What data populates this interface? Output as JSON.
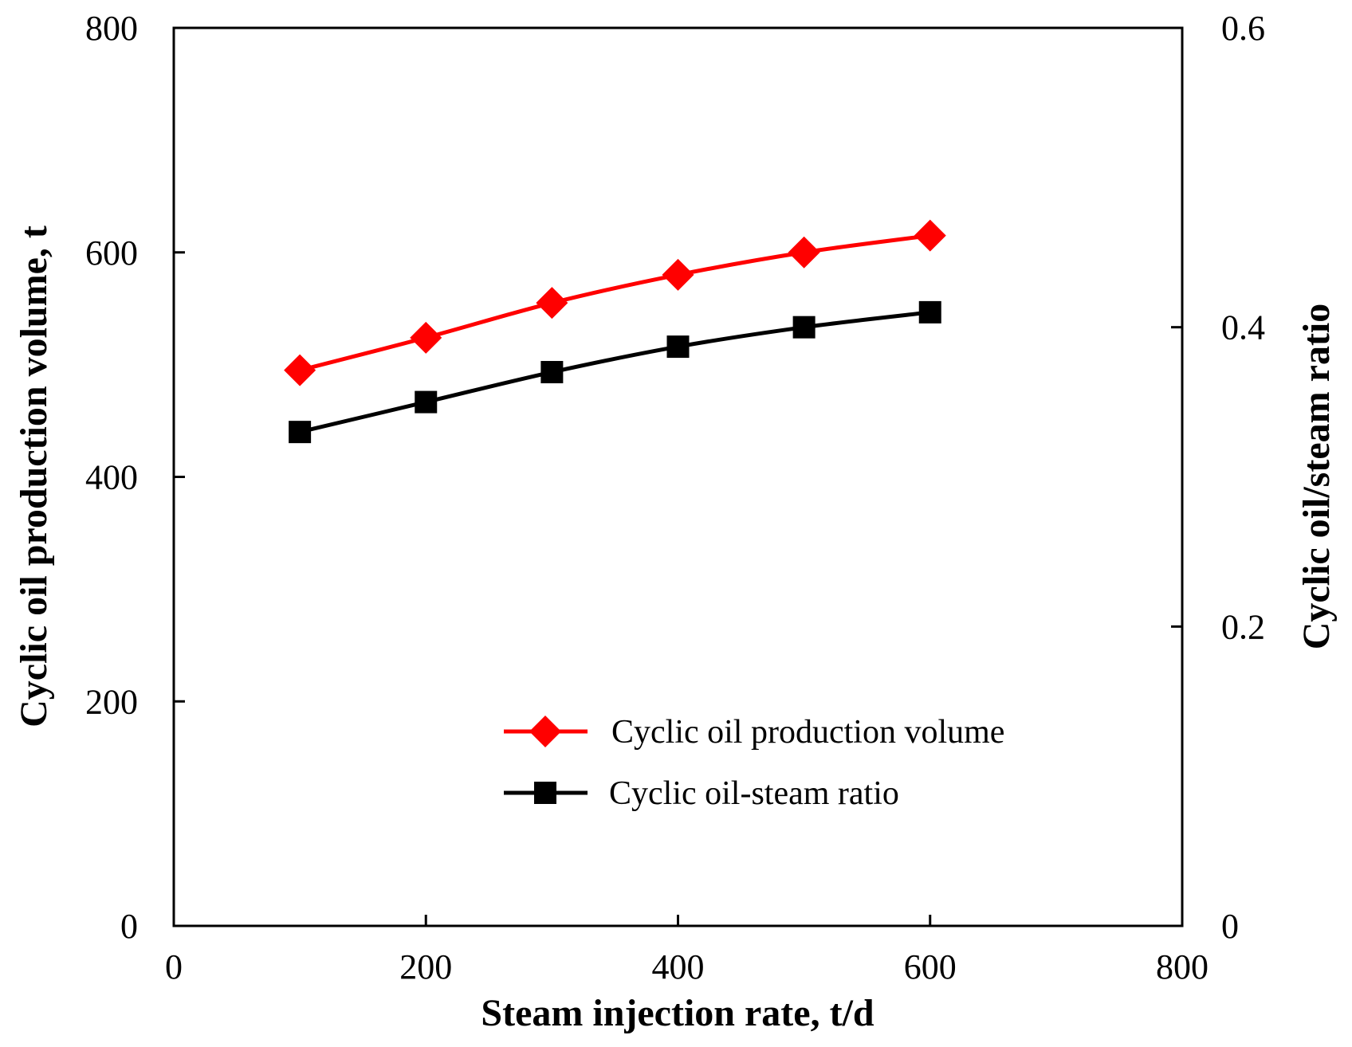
{
  "chart_data": {
    "type": "line",
    "x_axis": {
      "label": "Steam injection rate, t/d",
      "range": [
        0,
        800
      ],
      "ticks": [
        "0",
        "200",
        "400",
        "600",
        "800"
      ]
    },
    "y_left_axis": {
      "label": "Cyclic oil production volume, t",
      "range": [
        0,
        800
      ],
      "ticks": [
        "0",
        "200",
        "400",
        "600",
        "800"
      ]
    },
    "y_right_axis": {
      "label": "Cyclic oil/steam ratio",
      "range": [
        0,
        0.6
      ],
      "ticks": [
        "0",
        "0.2",
        "0.4",
        "0.6"
      ]
    },
    "x": [
      100,
      200,
      300,
      400,
      500,
      600
    ],
    "series": [
      {
        "name": "Cyclic oil production volume",
        "axis": "left",
        "marker": "diamond",
        "color": "#ff0000",
        "values": [
          495,
          524,
          555,
          580,
          600,
          615
        ]
      },
      {
        "name": "Cyclic oil-steam ratio",
        "axis": "right",
        "marker": "square",
        "color": "#000000",
        "values": [
          0.33,
          0.35,
          0.37,
          0.387,
          0.4,
          0.41
        ]
      }
    ],
    "grid": false,
    "legend_position": "lower-right"
  }
}
